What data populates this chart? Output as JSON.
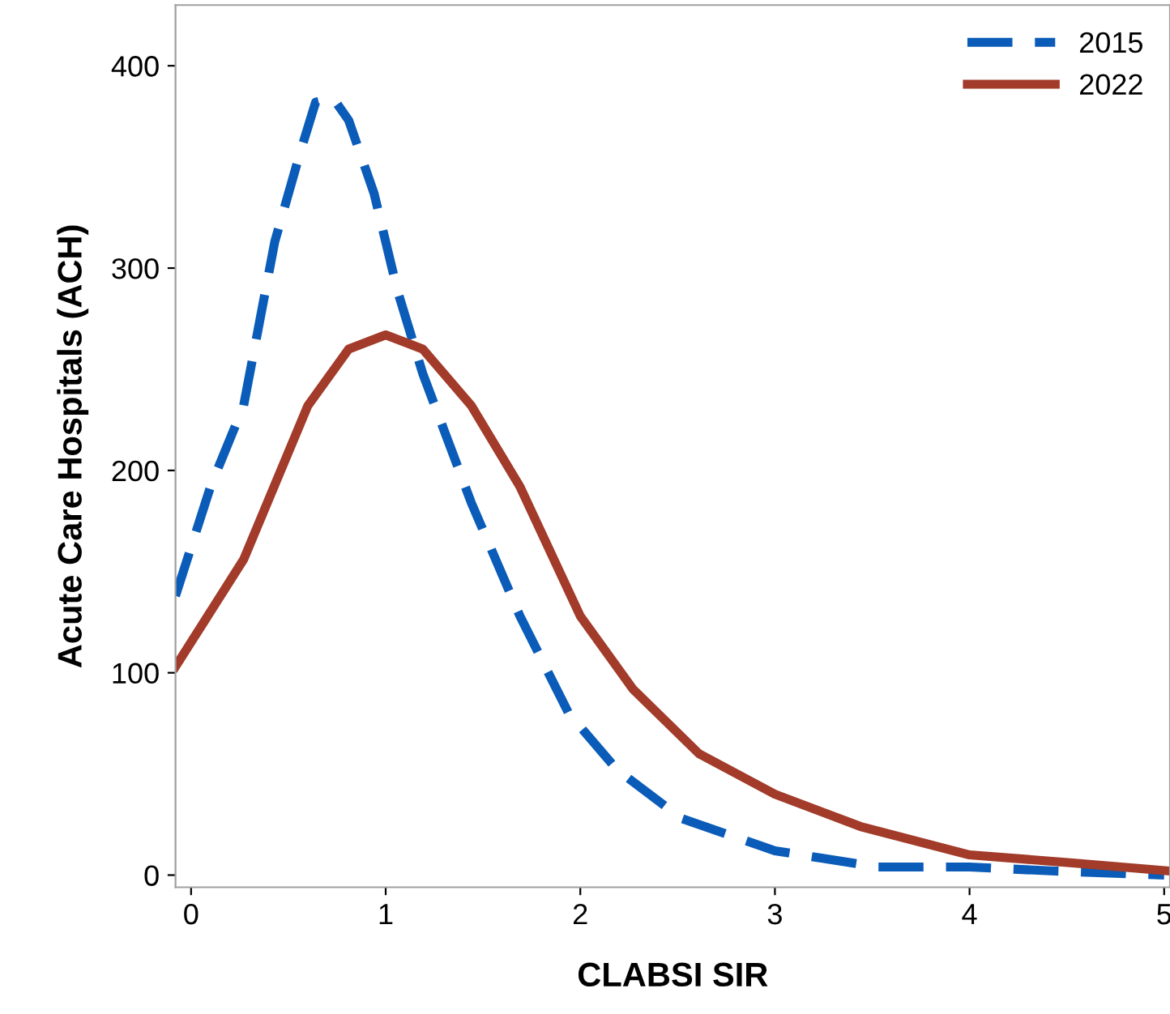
{
  "chart_data": {
    "type": "line",
    "xlabel": "CLABSI SIR",
    "ylabel": "Acute Care Hospitals (ACH)",
    "xlim": [
      -0.08,
      5.03
    ],
    "ylim": [
      -6,
      430
    ],
    "xticks": [
      0,
      1,
      2,
      3,
      4,
      5
    ],
    "yticks": [
      0,
      100,
      200,
      300,
      400
    ],
    "grid": false,
    "legend": "top right",
    "series": [
      {
        "name": "2015",
        "color": "#0a5cb8",
        "line_style": "dashed",
        "x": [
          -0.08,
          0.1,
          0.27,
          0.43,
          0.56,
          0.64,
          0.73,
          0.81,
          0.94,
          1.06,
          1.19,
          1.44,
          1.69,
          1.94,
          2.19,
          2.52,
          3.0,
          3.53,
          4.0,
          4.44,
          5.0
        ],
        "values": [
          138,
          192,
          232,
          313,
          357,
          382,
          384,
          373,
          337,
          289,
          248,
          184,
          128,
          80,
          52,
          28,
          12,
          4,
          4,
          2,
          0
        ]
      },
      {
        "name": "2022",
        "color": "#a23b2a",
        "line_style": "solid",
        "x": [
          -0.08,
          0.27,
          0.6,
          0.81,
          1.0,
          1.19,
          1.44,
          1.69,
          2.0,
          2.27,
          2.61,
          3.0,
          3.44,
          4.0,
          4.53,
          5.03
        ],
        "values": [
          103,
          156,
          232,
          260,
          267,
          260,
          232,
          192,
          128,
          92,
          60,
          40,
          24,
          10,
          6,
          2
        ]
      }
    ]
  }
}
